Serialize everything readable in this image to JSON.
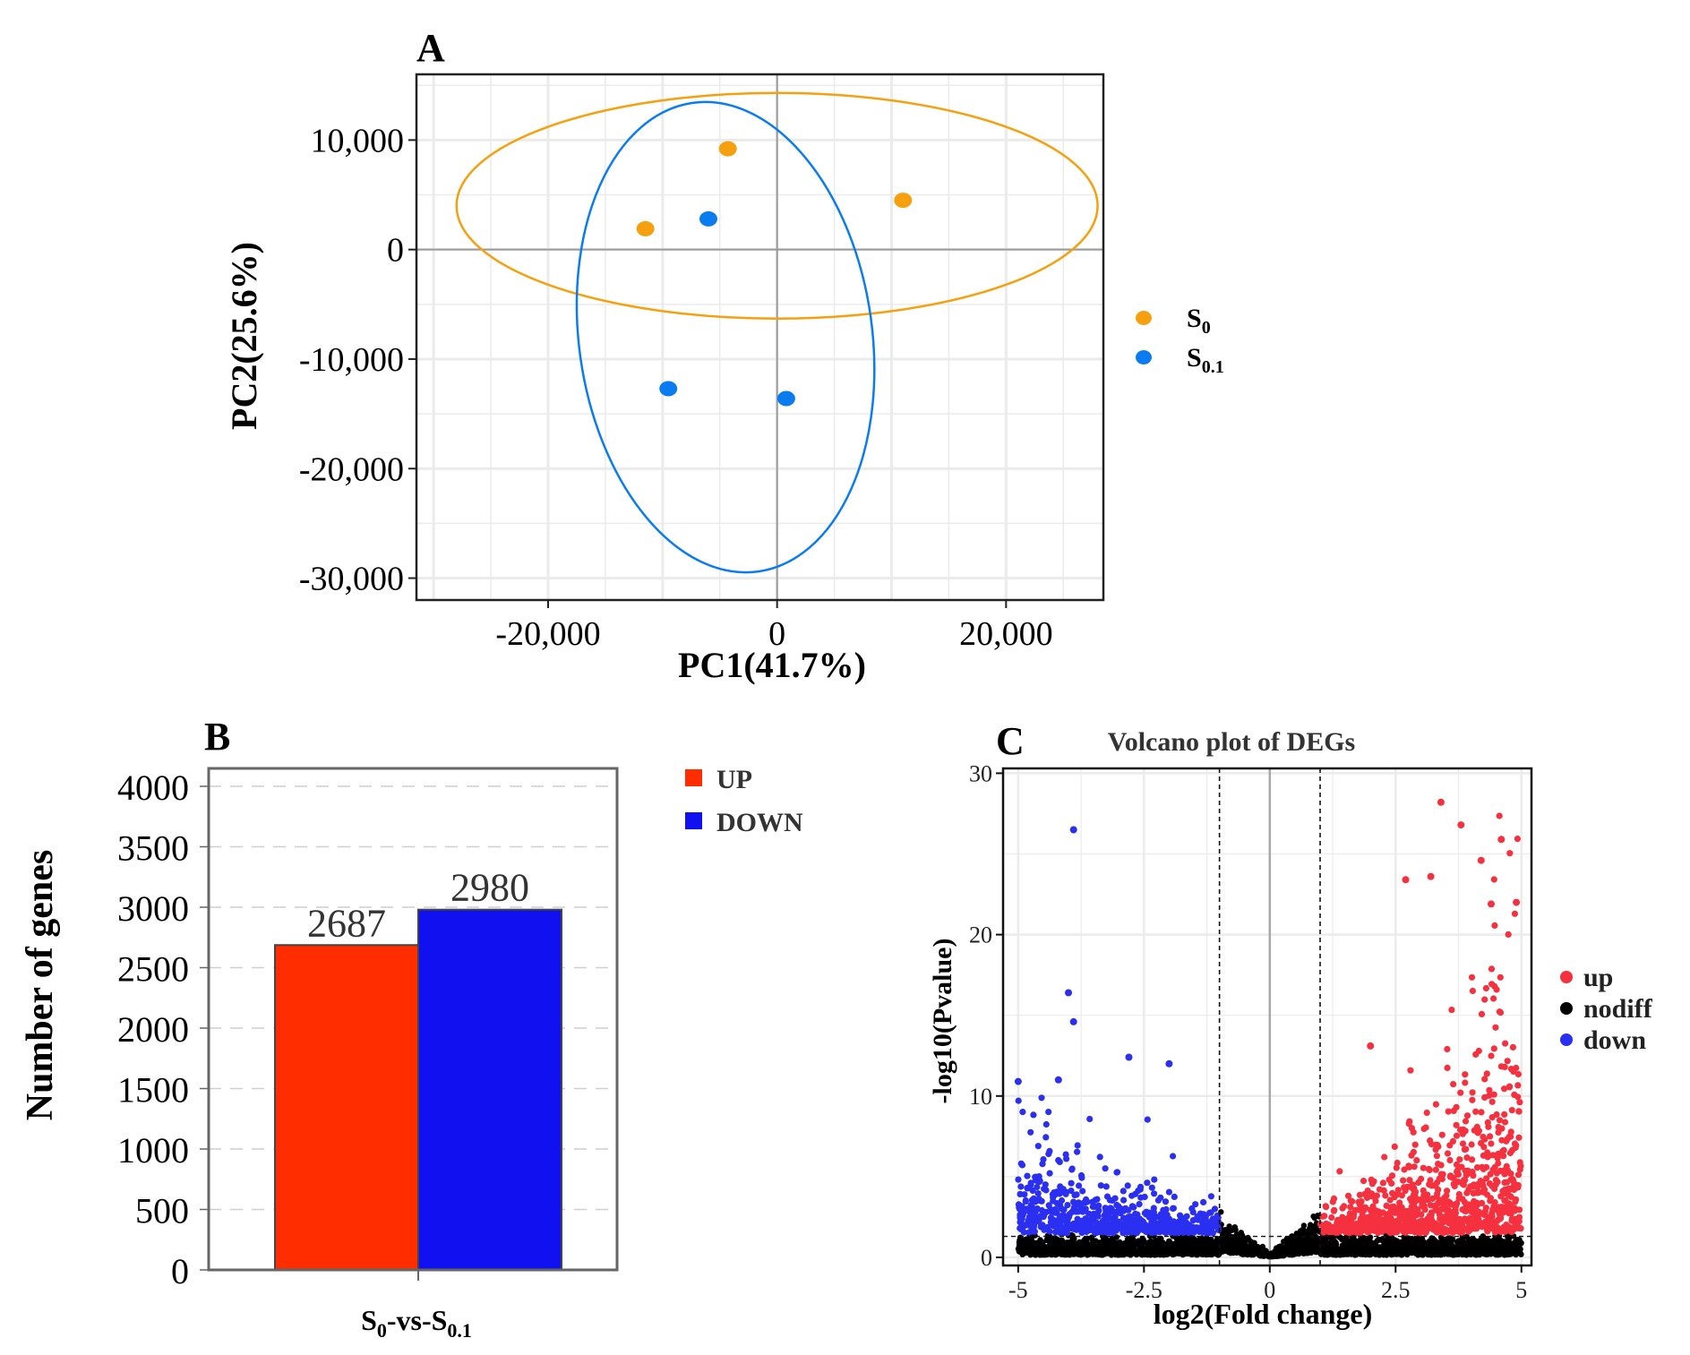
{
  "chart_data": [
    {
      "panel": "A",
      "type": "scatter",
      "xlabel": "PC1(41.7%)",
      "ylabel": "PC2(25.6%)",
      "xlim": [
        -31500,
        28500
      ],
      "ylim": [
        -32000,
        16000
      ],
      "xticks": [
        -20000,
        0,
        20000
      ],
      "xtick_labels": [
        "-20,000",
        "0",
        "20,000"
      ],
      "yticks": [
        10000,
        0,
        -10000,
        -20000,
        -30000
      ],
      "ytick_labels": [
        "10,000",
        "0",
        "-10,000",
        "-20,000",
        "-30,000"
      ],
      "grid": true,
      "legend_position": "right",
      "series": [
        {
          "name": "S0",
          "label_main": "S",
          "label_sub": "0",
          "color": "#f5a00f",
          "points": [
            [
              -4300,
              9200
            ],
            [
              -11500,
              1900
            ],
            [
              11000,
              4500
            ]
          ],
          "ellipse": {
            "cx": 0,
            "cy": 4000,
            "rx": 28000,
            "ry": 10300,
            "angle": 0
          }
        },
        {
          "name": "S0.1",
          "label_main": "S",
          "label_sub": "0.1",
          "color": "#0a7cf0",
          "points": [
            [
              -6000,
              2800
            ],
            [
              -9500,
              -12700
            ],
            [
              800,
              -13600
            ]
          ],
          "ellipse": {
            "cx": -4500,
            "cy": -8000,
            "rx": 12800,
            "ry": 21600,
            "angle": -8
          }
        }
      ]
    },
    {
      "panel": "B",
      "type": "bar",
      "ylabel": "Number of genes",
      "category_main": "S",
      "category_sub0": "0",
      "category_mid": "-vs-S",
      "category_sub1": "0.1",
      "ylim": [
        0,
        4000
      ],
      "yticks": [
        0,
        500,
        1000,
        1500,
        2000,
        2500,
        3000,
        3500,
        4000
      ],
      "ytick_labels": [
        "0",
        "500",
        "1000",
        "1500",
        "2000",
        "2500",
        "3000",
        "3500",
        "4000"
      ],
      "legend_position": "right",
      "series": [
        {
          "name": "UP",
          "value": 2687,
          "label": "2687",
          "color": "#ff2d00"
        },
        {
          "name": "DOWN",
          "value": 2980,
          "label": "2980",
          "color": "#1010f0"
        }
      ]
    },
    {
      "panel": "C",
      "type": "scatter",
      "title": "Volcano plot of DEGs",
      "xlabel": "log2(Fold change)",
      "ylabel": "-log10(Pvalue)",
      "xlim": [
        -5.3,
        5.2
      ],
      "ylim": [
        -0.5,
        30.3
      ],
      "xticks": [
        -5,
        -2.5,
        0,
        2.5,
        5
      ],
      "xtick_labels": [
        "-5",
        "-2.5",
        "0",
        "2.5",
        "5"
      ],
      "yticks": [
        0,
        10,
        20,
        30
      ],
      "ytick_labels": [
        "0",
        "10",
        "20",
        "30"
      ],
      "fold_change_threshold": [
        -1,
        1
      ],
      "pvalue_threshold_log10": 1.3,
      "legend_position": "right",
      "series": [
        {
          "name": "up",
          "color": "#f5303f",
          "count": 2687,
          "x_range": [
            1,
            5
          ],
          "highlight_points": [
            [
              3.4,
              28.2
            ],
            [
              3.8,
              26.8
            ],
            [
              4.6,
              25.9
            ],
            [
              4.2,
              24.6
            ],
            [
              3.2,
              23.6
            ],
            [
              2.7,
              23.4
            ],
            [
              4.9,
              22.0
            ],
            [
              4.4,
              21.9
            ],
            [
              2.0,
              13.1
            ]
          ]
        },
        {
          "name": "nodiff",
          "color": "#000000",
          "x_range": [
            -5,
            5
          ]
        },
        {
          "name": "down",
          "color": "#2b2ff0",
          "count": 2980,
          "x_range": [
            -5,
            -1
          ],
          "highlight_points": [
            [
              -3.9,
              26.5
            ],
            [
              -4.0,
              16.4
            ],
            [
              -3.9,
              14.6
            ],
            [
              -2.8,
              12.4
            ],
            [
              -2.0,
              12.0
            ],
            [
              -5.0,
              10.9
            ],
            [
              -4.2,
              11.0
            ]
          ]
        }
      ]
    }
  ],
  "panel_labels": {
    "a": "A",
    "b": "B",
    "c": "C"
  }
}
